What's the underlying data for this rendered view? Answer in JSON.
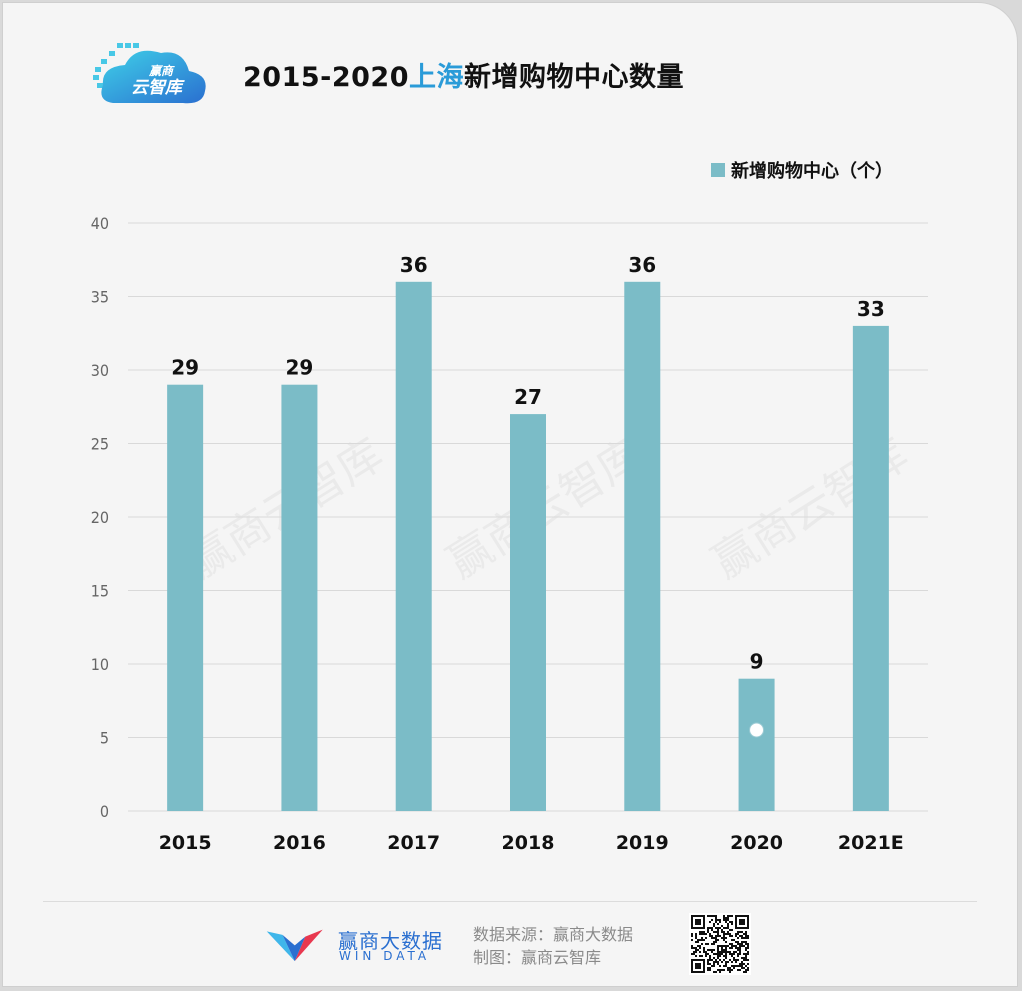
{
  "header": {
    "logo_text_top": "赢商",
    "logo_text_bottom": "云智库",
    "title_prefix": "2015-2020",
    "title_highlight": "上海",
    "title_suffix": "新增购物中心数量"
  },
  "watermark": "赢商云智库",
  "footer": {
    "brand_cn": "赢商大数据",
    "brand_en": "WIN DATA",
    "source_line": "数据来源：赢商大数据",
    "made_by_line": "制图：赢商云智库"
  },
  "colors": {
    "bar": "#7bbcc7",
    "title_highlight": "#2a9bd8",
    "grid": "#d9d9d9"
  },
  "chart_data": {
    "type": "bar",
    "categories": [
      "2015",
      "2016",
      "2017",
      "2018",
      "2019",
      "2020",
      "2021E"
    ],
    "series": [
      {
        "name": "新增购物中心（个）",
        "values": [
          29,
          29,
          36,
          27,
          36,
          9,
          33
        ]
      }
    ],
    "ylim": [
      0,
      40
    ],
    "yticks": [
      "0",
      "5",
      "10",
      "15",
      "20",
      "25",
      "30",
      "35",
      "40"
    ],
    "data_labels": [
      "29",
      "29",
      "36",
      "27",
      "36",
      "9",
      "33"
    ],
    "grid": true,
    "legend_position": "top-right"
  }
}
